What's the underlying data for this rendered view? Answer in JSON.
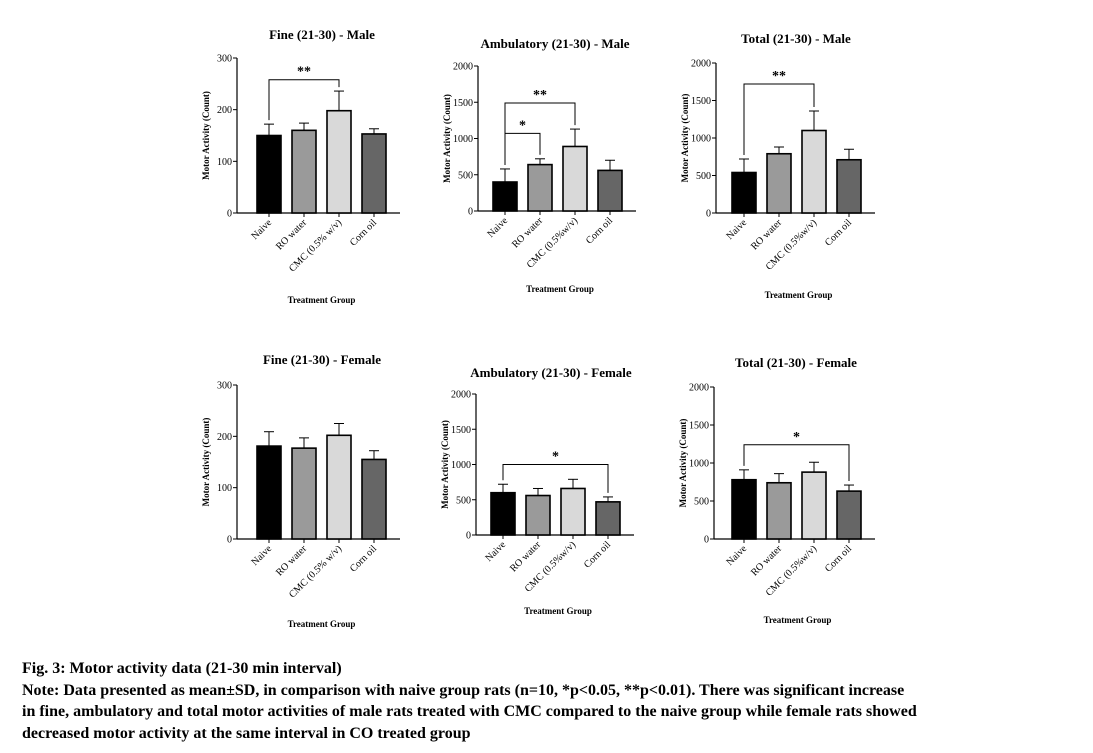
{
  "figure": {
    "caption_title": "Fig. 3: Motor activity data (21-30 min interval)",
    "caption_note_1": "Note: Data presented as mean±SD, in comparison with naive group rats (n=10, *p<0.05, **p<0.01). There was significant increase",
    "caption_note_2": "in fine, ambulatory and total motor activities of male rats treated with CMC compared to the naive group while female rats showed",
    "caption_note_3": "decreased motor activity at the same interval in CO treated group"
  },
  "colors": {
    "bar_fills": [
      "#000000",
      "#9a9a9a",
      "#d9d9d9",
      "#666666"
    ],
    "error_bar": "#000000",
    "axis": "#000000"
  },
  "chart_data": [
    {
      "type": "bar",
      "title": "Fine (21-30) - Male",
      "xlabel": "Treatment Group",
      "ylabel": "Motor Activity (Count)",
      "categories": [
        "Naive",
        "RO water",
        "CMC (0.5% w/v)",
        "Corn oil"
      ],
      "values": [
        150,
        160,
        198,
        153
      ],
      "errors": [
        22,
        14,
        38,
        10
      ],
      "ylim": [
        0,
        300
      ],
      "yticks": [
        "0",
        "100",
        "200",
        "300"
      ],
      "significance": [
        {
          "from": 0,
          "to": 2,
          "label": "**",
          "y": 258
        }
      ]
    },
    {
      "type": "bar",
      "title": "Ambulatory (21-30) - Male",
      "xlabel": "Treatment Group",
      "ylabel": "Motor Activity (Count)",
      "categories": [
        "Naive",
        "RO water",
        "CMC (0.5%w/v)",
        "Corn oil"
      ],
      "values": [
        400,
        640,
        890,
        560
      ],
      "errors": [
        180,
        80,
        240,
        140
      ],
      "ylim": [
        0,
        2000
      ],
      "yticks": [
        "0",
        "500",
        "1000",
        "1500",
        "2000"
      ],
      "significance": [
        {
          "from": 0,
          "to": 1,
          "label": "*",
          "y": 1070
        },
        {
          "from": 0,
          "to": 2,
          "label": "**",
          "y": 1490
        }
      ]
    },
    {
      "type": "bar",
      "title": "Total (21-30) - Male",
      "xlabel": "Treatment Group",
      "ylabel": "Motor Activity (Count)",
      "categories": [
        "Naive",
        "RO water",
        "CMC (0.5%w/v)",
        "Corn oil"
      ],
      "values": [
        540,
        790,
        1100,
        710
      ],
      "errors": [
        180,
        90,
        260,
        140
      ],
      "ylim": [
        0,
        2000
      ],
      "yticks": [
        "0",
        "500",
        "1000",
        "1500",
        "2000"
      ],
      "significance": [
        {
          "from": 0,
          "to": 2,
          "label": "**",
          "y": 1720
        }
      ]
    },
    {
      "type": "bar",
      "title": "Fine (21-30) - Female",
      "xlabel": "Treatment Group",
      "ylabel": "Motor Activity (Count)",
      "categories": [
        "Naive",
        "RO water",
        "CMC (0.5% w/v)",
        "Corn oil"
      ],
      "values": [
        181,
        177,
        202,
        155
      ],
      "errors": [
        28,
        20,
        23,
        17
      ],
      "ylim": [
        0,
        300
      ],
      "yticks": [
        "0",
        "100",
        "200",
        "300"
      ],
      "significance": []
    },
    {
      "type": "bar",
      "title": "Ambulatory (21-30) - Female",
      "xlabel": "Treatment Group",
      "ylabel": "Motor Activity (Count)",
      "categories": [
        "Naive",
        "RO water",
        "CMC (0.5%w/v)",
        "Corn oil"
      ],
      "values": [
        600,
        560,
        660,
        470
      ],
      "errors": [
        120,
        100,
        130,
        70
      ],
      "ylim": [
        0,
        2000
      ],
      "yticks": [
        "0",
        "500",
        "1000",
        "1500",
        "2000"
      ],
      "significance": [
        {
          "from": 0,
          "to": 3,
          "label": "*",
          "y": 1000
        }
      ]
    },
    {
      "type": "bar",
      "title": "Total (21-30) - Female",
      "xlabel": "Treatment Group",
      "ylabel": "Motor Activity (Count)",
      "categories": [
        "Naive",
        "RO water",
        "CMC (0.5%w/v)",
        "Corn oil"
      ],
      "values": [
        780,
        740,
        880,
        630
      ],
      "errors": [
        130,
        120,
        130,
        80
      ],
      "ylim": [
        0,
        2000
      ],
      "yticks": [
        "0",
        "500",
        "1000",
        "1500",
        "2000"
      ],
      "significance": [
        {
          "from": 0,
          "to": 3,
          "label": "*",
          "y": 1240
        }
      ]
    }
  ]
}
